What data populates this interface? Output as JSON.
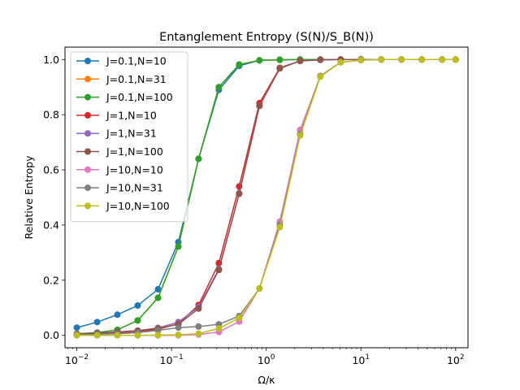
{
  "chart_data": {
    "type": "line",
    "title": "Entanglement Entropy (S(N)/S_B(N))",
    "xlabel": "Ω/κ",
    "ylabel": "Relative Entropy",
    "xscale": "log",
    "xlim": [
      0.0075,
      135
    ],
    "ylim": [
      -0.045,
      1.045
    ],
    "yticks": [
      0.0,
      0.2,
      0.4,
      0.6,
      0.8,
      1.0
    ],
    "ytick_labels": [
      "0.0",
      "0.2",
      "0.4",
      "0.6",
      "0.8",
      "1.0"
    ],
    "xticks": [
      0.01,
      0.1,
      1,
      10,
      100
    ],
    "xtick_bases": [
      "10",
      "10",
      "10",
      "10",
      "10"
    ],
    "xtick_exps": [
      "−2",
      "−1",
      "0",
      "1",
      "2"
    ],
    "grid": false,
    "legend_position": "upper-left",
    "x": [
      0.01,
      0.0164,
      0.0268,
      0.0439,
      0.072,
      0.118,
      0.193,
      0.316,
      0.518,
      0.848,
      1.39,
      2.28,
      3.73,
      6.11,
      10.0,
      16.4,
      26.8,
      43.9,
      72.0,
      100.0
    ],
    "series": [
      {
        "name": "J=0.1,N=10",
        "color": "#1f77b4",
        "values": [
          0.028,
          0.048,
          0.075,
          0.108,
          0.167,
          0.338,
          0.64,
          0.89,
          0.977,
          0.997,
          0.999,
          1.0,
          1.0,
          1.0,
          1.0,
          1.0,
          1.0,
          1.0,
          1.0,
          1.0
        ]
      },
      {
        "name": "J=0.1,N=31",
        "color": "#ff7f0e",
        "values": [
          0.006,
          0.01,
          0.02,
          0.054,
          0.136,
          0.322,
          0.64,
          0.9,
          0.982,
          0.997,
          0.999,
          1.0,
          1.0,
          1.0,
          1.0,
          1.0,
          1.0,
          1.0,
          1.0,
          1.0
        ]
      },
      {
        "name": "J=0.1,N=100",
        "color": "#2ca02c",
        "values": [
          0.006,
          0.01,
          0.02,
          0.054,
          0.136,
          0.322,
          0.64,
          0.9,
          0.982,
          0.997,
          0.999,
          1.0,
          1.0,
          1.0,
          1.0,
          1.0,
          1.0,
          1.0,
          1.0,
          1.0
        ]
      },
      {
        "name": "J=1,N=10",
        "color": "#d62728",
        "values": [
          0.003,
          0.005,
          0.008,
          0.012,
          0.022,
          0.042,
          0.11,
          0.262,
          0.54,
          0.842,
          0.97,
          0.995,
          0.999,
          1.0,
          1.0,
          1.0,
          1.0,
          1.0,
          1.0,
          1.0
        ]
      },
      {
        "name": "J=1,N=31",
        "color": "#9467bd",
        "values": [
          0.005,
          0.008,
          0.012,
          0.017,
          0.027,
          0.048,
          0.103,
          0.24,
          0.515,
          0.832,
          0.968,
          0.995,
          0.999,
          1.0,
          1.0,
          1.0,
          1.0,
          1.0,
          1.0,
          1.0
        ]
      },
      {
        "name": "J=1,N=100",
        "color": "#8c564b",
        "values": [
          0.005,
          0.008,
          0.012,
          0.017,
          0.025,
          0.04,
          0.097,
          0.237,
          0.513,
          0.832,
          0.968,
          0.995,
          0.999,
          1.0,
          1.0,
          1.0,
          1.0,
          1.0,
          1.0,
          1.0
        ]
      },
      {
        "name": "J=10,N=10",
        "color": "#e377c2",
        "values": [
          0.0,
          0.0,
          0.0,
          0.0,
          0.0,
          0.0,
          0.003,
          0.012,
          0.05,
          0.17,
          0.412,
          0.745,
          0.94,
          0.99,
          0.998,
          1.0,
          1.0,
          1.0,
          1.0,
          1.0
        ]
      },
      {
        "name": "J=10,N=31",
        "color": "#7f7f7f",
        "values": [
          0.003,
          0.004,
          0.006,
          0.01,
          0.018,
          0.028,
          0.032,
          0.04,
          0.07,
          0.17,
          0.4,
          0.73,
          0.94,
          0.99,
          0.998,
          1.0,
          1.0,
          1.0,
          1.0,
          1.0
        ]
      },
      {
        "name": "J=10,N=100",
        "color": "#bcbd22",
        "values": [
          0.0,
          0.0,
          0.0,
          0.0,
          0.001,
          0.002,
          0.006,
          0.025,
          0.063,
          0.17,
          0.392,
          0.725,
          0.938,
          0.99,
          0.998,
          1.0,
          1.0,
          1.0,
          1.0,
          1.0
        ]
      }
    ]
  }
}
